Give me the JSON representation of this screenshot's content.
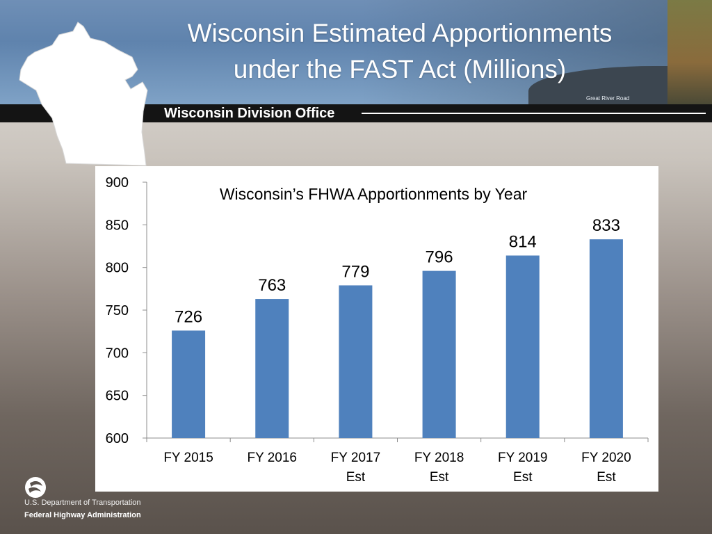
{
  "slide": {
    "title_line1": "Wisconsin Estimated Apportionments",
    "title_line2": "under the FAST Act (Millions)",
    "photo_caption": "Great River Road",
    "division_label": "Wisconsin Division Office",
    "footer_department": "U.S. Department of Transportation",
    "footer_agency": "Federal Highway Administration"
  },
  "colors": {
    "bar": "#4f81bd",
    "band": "#141414",
    "title": "#ffffff"
  },
  "chart_data": {
    "type": "bar",
    "title": "Wisconsin’s FHWA Apportionments by Year",
    "categories": [
      [
        "FY 2015"
      ],
      [
        "FY 2016"
      ],
      [
        "FY 2017",
        "Est"
      ],
      [
        "FY 2018",
        "Est"
      ],
      [
        "FY 2019",
        "Est"
      ],
      [
        "FY 2020",
        "Est"
      ]
    ],
    "values": [
      726,
      763,
      779,
      796,
      814,
      833
    ],
    "ylim": [
      600,
      900
    ],
    "yticks": [
      600,
      650,
      700,
      750,
      800,
      850,
      900
    ],
    "grid": false,
    "legend": "none",
    "data_labels": true
  }
}
